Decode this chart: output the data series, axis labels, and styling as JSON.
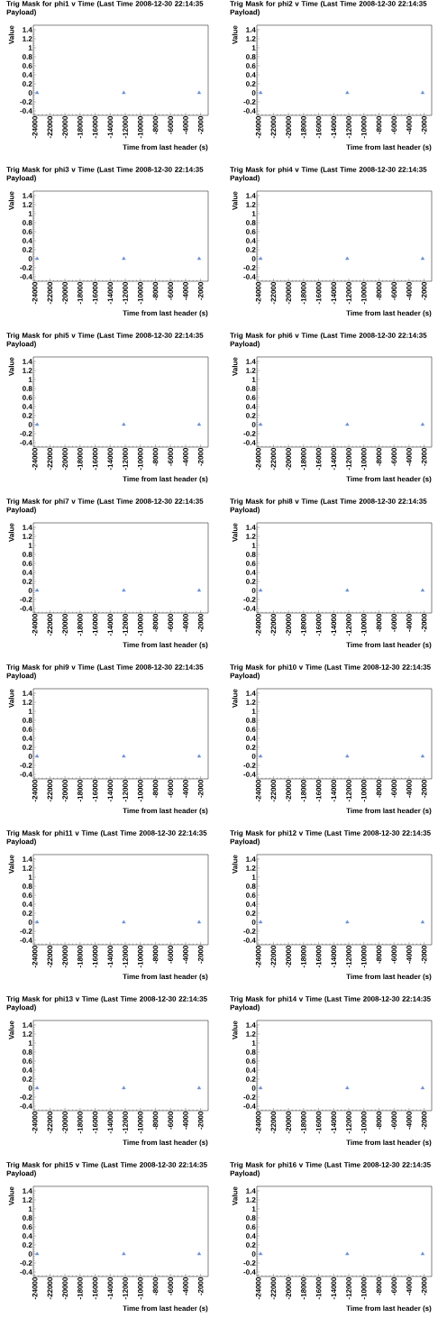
{
  "chart_data": [
    {
      "type": "scatter",
      "title": "Trig Mask for phi1 v Time (Last Time 2008-12-30 22:14:35 Payload)",
      "xlabel": "Time from last header (s)",
      "ylabel": "Value",
      "x": [
        -23700,
        -12200,
        -2200
      ],
      "series": [
        {
          "color": "#6a8fd4",
          "values": [
            0,
            0,
            0
          ]
        }
      ],
      "marker": "triangle",
      "xlim": [
        -24200,
        -1000
      ],
      "ylim": [
        -0.5,
        1.5
      ],
      "xticks": [
        -24000,
        -22000,
        -20000,
        -18000,
        -16000,
        -14000,
        -12000,
        -10000,
        -8000,
        -6000,
        -4000,
        -2000
      ],
      "yticks": [
        -0.4,
        -0.2,
        0,
        0.2,
        0.4,
        0.6,
        0.8,
        1,
        1.2,
        1.4
      ]
    },
    {
      "type": "scatter",
      "title": "Trig Mask for phi2 v Time (Last Time 2008-12-30 22:14:35 Payload)",
      "xlabel": "Time from last header (s)",
      "ylabel": "Value",
      "x": [
        -23700,
        -12200,
        -2200
      ],
      "series": [
        {
          "color": "#6a8fd4",
          "values": [
            0,
            0,
            0
          ]
        }
      ],
      "marker": "triangle",
      "xlim": [
        -24200,
        -1000
      ],
      "ylim": [
        -0.5,
        1.5
      ],
      "xticks": [
        -24000,
        -22000,
        -20000,
        -18000,
        -16000,
        -14000,
        -12000,
        -10000,
        -8000,
        -6000,
        -4000,
        -2000
      ],
      "yticks": [
        -0.4,
        -0.2,
        0,
        0.2,
        0.4,
        0.6,
        0.8,
        1,
        1.2,
        1.4
      ]
    },
    {
      "type": "scatter",
      "title": "Trig Mask for phi3 v Time (Last Time 2008-12-30 22:14:35 Payload)",
      "xlabel": "Time from last header (s)",
      "ylabel": "Value",
      "x": [
        -23700,
        -12200,
        -2200
      ],
      "series": [
        {
          "color": "#6a8fd4",
          "values": [
            0,
            0,
            0
          ]
        }
      ],
      "marker": "triangle",
      "xlim": [
        -24200,
        -1000
      ],
      "ylim": [
        -0.5,
        1.5
      ],
      "xticks": [
        -24000,
        -22000,
        -20000,
        -18000,
        -16000,
        -14000,
        -12000,
        -10000,
        -8000,
        -6000,
        -4000,
        -2000
      ],
      "yticks": [
        -0.4,
        -0.2,
        0,
        0.2,
        0.4,
        0.6,
        0.8,
        1,
        1.2,
        1.4
      ]
    },
    {
      "type": "scatter",
      "title": "Trig Mask for phi4 v Time (Last Time 2008-12-30 22:14:35 Payload)",
      "xlabel": "Time from last header (s)",
      "ylabel": "Value",
      "x": [
        -23700,
        -12200,
        -2200
      ],
      "series": [
        {
          "color": "#6a8fd4",
          "values": [
            0,
            0,
            0
          ]
        }
      ],
      "marker": "triangle",
      "xlim": [
        -24200,
        -1000
      ],
      "ylim": [
        -0.5,
        1.5
      ],
      "xticks": [
        -24000,
        -22000,
        -20000,
        -18000,
        -16000,
        -14000,
        -12000,
        -10000,
        -8000,
        -6000,
        -4000,
        -2000
      ],
      "yticks": [
        -0.4,
        -0.2,
        0,
        0.2,
        0.4,
        0.6,
        0.8,
        1,
        1.2,
        1.4
      ]
    },
    {
      "type": "scatter",
      "title": "Trig Mask for phi5 v Time (Last Time 2008-12-30 22:14:35 Payload)",
      "xlabel": "Time from last header (s)",
      "ylabel": "Value",
      "x": [
        -23700,
        -12200,
        -2200
      ],
      "series": [
        {
          "color": "#6a8fd4",
          "values": [
            0,
            0,
            0
          ]
        }
      ],
      "marker": "triangle",
      "xlim": [
        -24200,
        -1000
      ],
      "ylim": [
        -0.5,
        1.5
      ],
      "xticks": [
        -24000,
        -22000,
        -20000,
        -18000,
        -16000,
        -14000,
        -12000,
        -10000,
        -8000,
        -6000,
        -4000,
        -2000
      ],
      "yticks": [
        -0.4,
        -0.2,
        0,
        0.2,
        0.4,
        0.6,
        0.8,
        1,
        1.2,
        1.4
      ]
    },
    {
      "type": "scatter",
      "title": "Trig Mask for phi6 v Time (Last Time 2008-12-30 22:14:35 Payload)",
      "xlabel": "Time from last header (s)",
      "ylabel": "Value",
      "x": [
        -23700,
        -12200,
        -2200
      ],
      "series": [
        {
          "color": "#6a8fd4",
          "values": [
            0,
            0,
            0
          ]
        }
      ],
      "marker": "triangle",
      "xlim": [
        -24200,
        -1000
      ],
      "ylim": [
        -0.5,
        1.5
      ],
      "xticks": [
        -24000,
        -22000,
        -20000,
        -18000,
        -16000,
        -14000,
        -12000,
        -10000,
        -8000,
        -6000,
        -4000,
        -2000
      ],
      "yticks": [
        -0.4,
        -0.2,
        0,
        0.2,
        0.4,
        0.6,
        0.8,
        1,
        1.2,
        1.4
      ]
    },
    {
      "type": "scatter",
      "title": "Trig Mask for phi7 v Time (Last Time 2008-12-30 22:14:35 Payload)",
      "xlabel": "Time from last header (s)",
      "ylabel": "Value",
      "x": [
        -23700,
        -12200,
        -2200
      ],
      "series": [
        {
          "color": "#6a8fd4",
          "values": [
            0,
            0,
            0
          ]
        }
      ],
      "marker": "triangle",
      "xlim": [
        -24200,
        -1000
      ],
      "ylim": [
        -0.5,
        1.5
      ],
      "xticks": [
        -24000,
        -22000,
        -20000,
        -18000,
        -16000,
        -14000,
        -12000,
        -10000,
        -8000,
        -6000,
        -4000,
        -2000
      ],
      "yticks": [
        -0.4,
        -0.2,
        0,
        0.2,
        0.4,
        0.6,
        0.8,
        1,
        1.2,
        1.4
      ]
    },
    {
      "type": "scatter",
      "title": "Trig Mask for phi8 v Time (Last Time 2008-12-30 22:14:35 Payload)",
      "xlabel": "Time from last header (s)",
      "ylabel": "Value",
      "x": [
        -23700,
        -12200,
        -2200
      ],
      "series": [
        {
          "color": "#6a8fd4",
          "values": [
            0,
            0,
            0
          ]
        }
      ],
      "marker": "triangle",
      "xlim": [
        -24200,
        -1000
      ],
      "ylim": [
        -0.5,
        1.5
      ],
      "xticks": [
        -24000,
        -22000,
        -20000,
        -18000,
        -16000,
        -14000,
        -12000,
        -10000,
        -8000,
        -6000,
        -4000,
        -2000
      ],
      "yticks": [
        -0.4,
        -0.2,
        0,
        0.2,
        0.4,
        0.6,
        0.8,
        1,
        1.2,
        1.4
      ]
    },
    {
      "type": "scatter",
      "title": "Trig Mask for phi9 v Time (Last Time 2008-12-30 22:14:35 Payload)",
      "xlabel": "Time from last header (s)",
      "ylabel": "Value",
      "x": [
        -23700,
        -12200,
        -2200
      ],
      "series": [
        {
          "color": "#6a8fd4",
          "values": [
            0,
            0,
            0
          ]
        }
      ],
      "marker": "triangle",
      "xlim": [
        -24200,
        -1000
      ],
      "ylim": [
        -0.5,
        1.5
      ],
      "xticks": [
        -24000,
        -22000,
        -20000,
        -18000,
        -16000,
        -14000,
        -12000,
        -10000,
        -8000,
        -6000,
        -4000,
        -2000
      ],
      "yticks": [
        -0.4,
        -0.2,
        0,
        0.2,
        0.4,
        0.6,
        0.8,
        1,
        1.2,
        1.4
      ]
    },
    {
      "type": "scatter",
      "title": "Trig Mask for phi10 v Time (Last Time 2008-12-30 22:14:35 Payload)",
      "xlabel": "Time from last header (s)",
      "ylabel": "Value",
      "x": [
        -23700,
        -12200,
        -2200
      ],
      "series": [
        {
          "color": "#6a8fd4",
          "values": [
            0,
            0,
            0
          ]
        }
      ],
      "marker": "triangle",
      "xlim": [
        -24200,
        -1000
      ],
      "ylim": [
        -0.5,
        1.5
      ],
      "xticks": [
        -24000,
        -22000,
        -20000,
        -18000,
        -16000,
        -14000,
        -12000,
        -10000,
        -8000,
        -6000,
        -4000,
        -2000
      ],
      "yticks": [
        -0.4,
        -0.2,
        0,
        0.2,
        0.4,
        0.6,
        0.8,
        1,
        1.2,
        1.4
      ]
    },
    {
      "type": "scatter",
      "title": "Trig Mask for phi11 v Time (Last Time 2008-12-30 22:14:35 Payload)",
      "xlabel": "Time from last header (s)",
      "ylabel": "Value",
      "x": [
        -23700,
        -12200,
        -2200
      ],
      "series": [
        {
          "color": "#6a8fd4",
          "values": [
            0,
            0,
            0
          ]
        }
      ],
      "marker": "triangle",
      "xlim": [
        -24200,
        -1000
      ],
      "ylim": [
        -0.5,
        1.5
      ],
      "xticks": [
        -24000,
        -22000,
        -20000,
        -18000,
        -16000,
        -14000,
        -12000,
        -10000,
        -8000,
        -6000,
        -4000,
        -2000
      ],
      "yticks": [
        -0.4,
        -0.2,
        0,
        0.2,
        0.4,
        0.6,
        0.8,
        1,
        1.2,
        1.4
      ]
    },
    {
      "type": "scatter",
      "title": "Trig Mask for phi12 v Time (Last Time 2008-12-30 22:14:35 Payload)",
      "xlabel": "Time from last header (s)",
      "ylabel": "Value",
      "x": [
        -23700,
        -12200,
        -2200
      ],
      "series": [
        {
          "color": "#6a8fd4",
          "values": [
            0,
            0,
            0
          ]
        }
      ],
      "marker": "triangle",
      "xlim": [
        -24200,
        -1000
      ],
      "ylim": [
        -0.5,
        1.5
      ],
      "xticks": [
        -24000,
        -22000,
        -20000,
        -18000,
        -16000,
        -14000,
        -12000,
        -10000,
        -8000,
        -6000,
        -4000,
        -2000
      ],
      "yticks": [
        -0.4,
        -0.2,
        0,
        0.2,
        0.4,
        0.6,
        0.8,
        1,
        1.2,
        1.4
      ]
    },
    {
      "type": "scatter",
      "title": "Trig Mask for phi13 v Time (Last Time 2008-12-30 22:14:35 Payload)",
      "xlabel": "Time from last header (s)",
      "ylabel": "Value",
      "x": [
        -23700,
        -12200,
        -2200
      ],
      "series": [
        {
          "color": "#6a8fd4",
          "values": [
            0,
            0,
            0
          ]
        }
      ],
      "marker": "triangle",
      "xlim": [
        -24200,
        -1000
      ],
      "ylim": [
        -0.5,
        1.5
      ],
      "xticks": [
        -24000,
        -22000,
        -20000,
        -18000,
        -16000,
        -14000,
        -12000,
        -10000,
        -8000,
        -6000,
        -4000,
        -2000
      ],
      "yticks": [
        -0.4,
        -0.2,
        0,
        0.2,
        0.4,
        0.6,
        0.8,
        1,
        1.2,
        1.4
      ]
    },
    {
      "type": "scatter",
      "title": "Trig Mask for phi14 v Time (Last Time 2008-12-30 22:14:35 Payload)",
      "xlabel": "Time from last header (s)",
      "ylabel": "Value",
      "x": [
        -23700,
        -12200,
        -2200
      ],
      "series": [
        {
          "color": "#6a8fd4",
          "values": [
            0,
            0,
            0
          ]
        }
      ],
      "marker": "triangle",
      "xlim": [
        -24200,
        -1000
      ],
      "ylim": [
        -0.5,
        1.5
      ],
      "xticks": [
        -24000,
        -22000,
        -20000,
        -18000,
        -16000,
        -14000,
        -12000,
        -10000,
        -8000,
        -6000,
        -4000,
        -2000
      ],
      "yticks": [
        -0.4,
        -0.2,
        0,
        0.2,
        0.4,
        0.6,
        0.8,
        1,
        1.2,
        1.4
      ]
    },
    {
      "type": "scatter",
      "title": "Trig Mask for phi15 v Time (Last Time 2008-12-30 22:14:35 Payload)",
      "xlabel": "Time from last header (s)",
      "ylabel": "Value",
      "x": [
        -23700,
        -12200,
        -2200
      ],
      "series": [
        {
          "color": "#6a8fd4",
          "values": [
            0,
            0,
            0
          ]
        }
      ],
      "marker": "triangle",
      "xlim": [
        -24200,
        -1000
      ],
      "ylim": [
        -0.5,
        1.5
      ],
      "xticks": [
        -24000,
        -22000,
        -20000,
        -18000,
        -16000,
        -14000,
        -12000,
        -10000,
        -8000,
        -6000,
        -4000,
        -2000
      ],
      "yticks": [
        -0.4,
        -0.2,
        0,
        0.2,
        0.4,
        0.6,
        0.8,
        1,
        1.2,
        1.4
      ]
    },
    {
      "type": "scatter",
      "title": "Trig Mask for phi16 v Time (Last Time 2008-12-30 22:14:35 Payload)",
      "xlabel": "Time from last header (s)",
      "ylabel": "Value",
      "x": [
        -23700,
        -12200,
        -2200
      ],
      "series": [
        {
          "color": "#6a8fd4",
          "values": [
            0,
            0,
            0
          ]
        }
      ],
      "marker": "triangle",
      "xlim": [
        -24200,
        -1000
      ],
      "ylim": [
        -0.5,
        1.5
      ],
      "xticks": [
        -24000,
        -22000,
        -20000,
        -18000,
        -16000,
        -14000,
        -12000,
        -10000,
        -8000,
        -6000,
        -4000,
        -2000
      ],
      "yticks": [
        -0.4,
        -0.2,
        0,
        0.2,
        0.4,
        0.6,
        0.8,
        1,
        1.2,
        1.4
      ]
    }
  ]
}
